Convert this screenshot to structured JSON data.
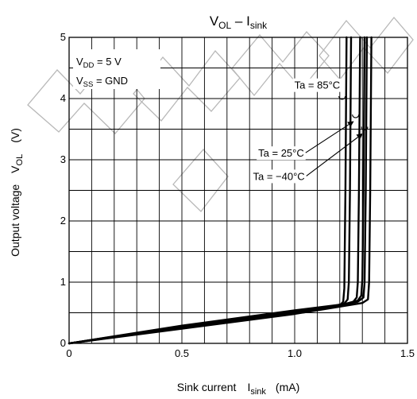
{
  "chart_data": {
    "type": "line",
    "title": {
      "main": "V",
      "main_sub": "OL",
      "sep": " – ",
      "second": "I",
      "second_sub": "sink"
    },
    "xlabel": {
      "prefix": "Sink current",
      "symbol": "I",
      "symbol_sub": "sink",
      "unit": "(mA)"
    },
    "ylabel": {
      "prefix": "Output voltage",
      "symbol": "V",
      "symbol_sub": "OL",
      "unit": "(V)"
    },
    "xlim": [
      0,
      1.5
    ],
    "ylim": [
      0,
      5
    ],
    "x_ticks": [
      {
        "value": 0,
        "label": "0"
      },
      {
        "value": 0.5,
        "label": "0.5"
      },
      {
        "value": 1.0,
        "label": "1.0"
      },
      {
        "value": 1.5,
        "label": "1.5"
      }
    ],
    "y_ticks": [
      {
        "value": 0,
        "label": "0"
      },
      {
        "value": 1,
        "label": "1"
      },
      {
        "value": 2,
        "label": "2"
      },
      {
        "value": 3,
        "label": "3"
      },
      {
        "value": 4,
        "label": "4"
      },
      {
        "value": 5,
        "label": "5"
      }
    ],
    "grid": {
      "x_step": 0.1,
      "y_step": 0.5,
      "shown": true
    },
    "conditions": [
      {
        "sym": "V",
        "sub": "DD",
        "rest": " = 5 V"
      },
      {
        "sym": "V",
        "sub": "SS",
        "rest": " = GND"
      }
    ],
    "series": [
      {
        "name": "Ta = 85°C",
        "points": [
          [
            0,
            0
          ],
          [
            0.5,
            0.26
          ],
          [
            1.0,
            0.5
          ],
          [
            1.15,
            0.58
          ],
          [
            1.2,
            0.62
          ],
          [
            1.215,
            0.68
          ],
          [
            1.22,
            0.9
          ],
          [
            1.225,
            2.5
          ],
          [
            1.23,
            5.0
          ]
        ]
      },
      {
        "name": "Ta = 85°C",
        "points": [
          [
            0,
            0
          ],
          [
            0.5,
            0.27
          ],
          [
            1.0,
            0.52
          ],
          [
            1.16,
            0.6
          ],
          [
            1.22,
            0.65
          ],
          [
            1.235,
            0.72
          ],
          [
            1.24,
            1.0
          ],
          [
            1.245,
            2.5
          ],
          [
            1.25,
            5.0
          ]
        ]
      },
      {
        "name": "Ta = 25°C",
        "points": [
          [
            0,
            0
          ],
          [
            0.5,
            0.28
          ],
          [
            1.0,
            0.53
          ],
          [
            1.2,
            0.62
          ],
          [
            1.26,
            0.68
          ],
          [
            1.275,
            0.75
          ],
          [
            1.28,
            1.0
          ],
          [
            1.285,
            2.5
          ],
          [
            1.29,
            5.0
          ]
        ]
      },
      {
        "name": "Ta = 25°C",
        "points": [
          [
            0,
            0
          ],
          [
            0.5,
            0.29
          ],
          [
            1.0,
            0.54
          ],
          [
            1.22,
            0.64
          ],
          [
            1.28,
            0.7
          ],
          [
            1.295,
            0.78
          ],
          [
            1.3,
            1.05
          ],
          [
            1.305,
            2.5
          ],
          [
            1.31,
            5.0
          ]
        ]
      },
      {
        "name": "Ta = -40°C",
        "points": [
          [
            0,
            0
          ],
          [
            0.5,
            0.25
          ],
          [
            1.0,
            0.5
          ],
          [
            1.2,
            0.62
          ],
          [
            1.28,
            0.68
          ],
          [
            1.305,
            0.75
          ],
          [
            1.31,
            1.0
          ],
          [
            1.315,
            2.5
          ],
          [
            1.32,
            5.0
          ]
        ]
      },
      {
        "name": "Ta = -40°C",
        "points": [
          [
            0,
            0
          ],
          [
            0.5,
            0.24
          ],
          [
            1.0,
            0.48
          ],
          [
            1.2,
            0.6
          ],
          [
            1.3,
            0.66
          ],
          [
            1.325,
            0.72
          ],
          [
            1.33,
            1.0
          ],
          [
            1.335,
            2.5
          ],
          [
            1.34,
            5.0
          ]
        ]
      }
    ],
    "annotations": [
      {
        "text": "Ta = 85°C",
        "at": [
          1.1,
          4.16
        ],
        "points_to": [
          1.21,
          4.0
        ]
      },
      {
        "text": "Ta = 25°C",
        "at": [
          0.94,
          3.05
        ],
        "points_to": [
          1.27,
          3.7
        ]
      },
      {
        "text": "Ta = −40°C",
        "at": [
          0.93,
          2.67
        ],
        "points_to": [
          1.31,
          3.5
        ]
      }
    ],
    "colors": {
      "lines": "#000000",
      "grid": "#000000",
      "background": "#ffffff",
      "watermark": "#b8b8b8"
    }
  }
}
